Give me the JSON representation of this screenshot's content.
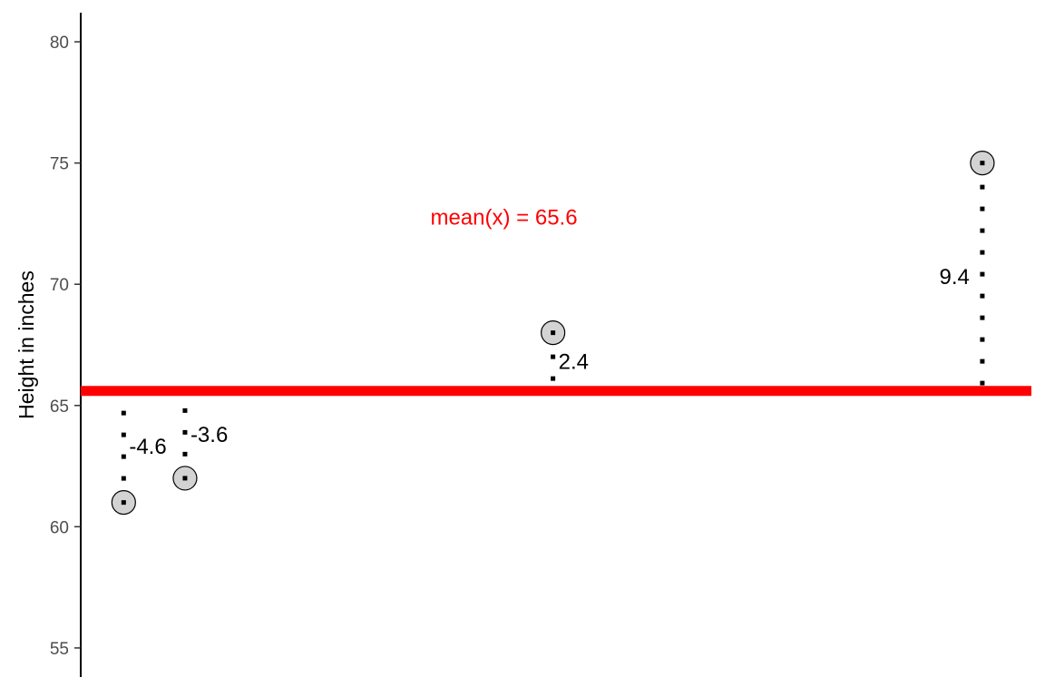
{
  "chart_data": {
    "type": "scatter",
    "ylabel": "Height in inches",
    "xlabel": "",
    "ylim": [
      53.8,
      81.2
    ],
    "y_ticks": [
      55,
      60,
      65,
      70,
      75,
      80
    ],
    "y_tick_labels": [
      "55",
      "60",
      "65",
      "70",
      "75",
      "80"
    ],
    "x_ticks_shown": false,
    "grid": false,
    "points": [
      {
        "x": 1,
        "y": 61,
        "deviation_label": "-4.6"
      },
      {
        "x": 2,
        "y": 62,
        "deviation_label": "-3.6"
      },
      {
        "x": 8,
        "y": 68,
        "deviation_label": "2.4"
      },
      {
        "x": 15,
        "y": 75,
        "deviation_label": "9.4"
      }
    ],
    "mean": 65.6,
    "mean_annotation": "mean(x) =  65.6",
    "colors": {
      "mean_line": "#ff0000",
      "mean_text": "#ff0000",
      "point_fill": "#d3d3d3",
      "point_stroke": "#000000",
      "segment": "#000000"
    }
  }
}
